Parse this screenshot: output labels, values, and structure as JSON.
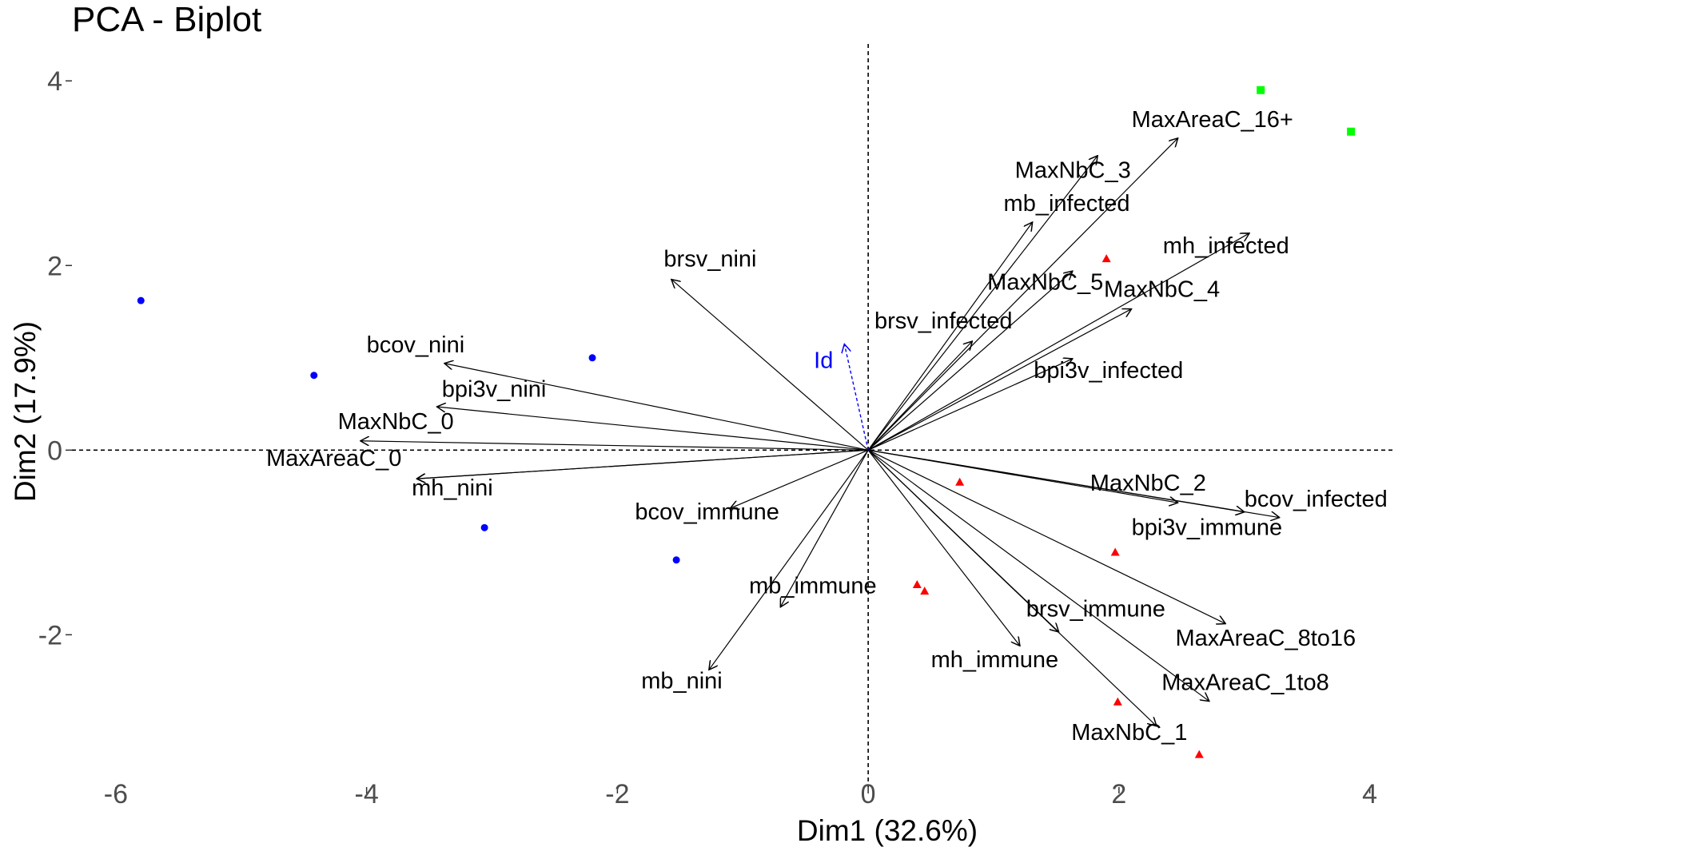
{
  "chart_data": {
    "type": "scatter",
    "title": "PCA - Biplot",
    "xlabel": "Dim1 (32.6%)",
    "ylabel": "Dim2 (17.9%)",
    "xlim": [
      -6.35,
      4.2
    ],
    "ylim": [
      -3.65,
      4.4
    ],
    "xticks": [
      -6,
      -4,
      -2,
      0,
      2,
      4
    ],
    "yticks": [
      -2,
      0,
      2,
      4
    ],
    "grid": false,
    "reference_lines": {
      "x": 0,
      "y": 0,
      "style": "dashed"
    },
    "groups": [
      {
        "shape": "circle",
        "color": "#0000ff",
        "points": [
          [
            -5.8,
            1.62
          ],
          [
            -4.42,
            0.81
          ],
          [
            -3.06,
            -0.84
          ],
          [
            -2.2,
            1.0
          ],
          [
            -1.53,
            -1.19
          ]
        ]
      },
      {
        "shape": "triangle",
        "color": "#ff0000",
        "points": [
          [
            1.9,
            2.07
          ],
          [
            0.73,
            -0.35
          ],
          [
            1.97,
            -1.11
          ],
          [
            0.39,
            -1.46
          ],
          [
            0.45,
            -1.53
          ],
          [
            1.99,
            -2.73
          ],
          [
            2.64,
            -3.3
          ]
        ]
      },
      {
        "shape": "square",
        "color": "#00ff00",
        "points": [
          [
            3.13,
            3.9
          ],
          [
            3.85,
            3.45
          ]
        ]
      }
    ],
    "variables": [
      {
        "name": "MaxAreaC_16+",
        "x": 2.47,
        "y": 3.38
      },
      {
        "name": "MaxNbC_3",
        "x": 1.83,
        "y": 3.19
      },
      {
        "name": "mb_infected",
        "x": 1.31,
        "y": 2.47
      },
      {
        "name": "mh_infected",
        "x": 3.04,
        "y": 2.35
      },
      {
        "name": "MaxNbC_5",
        "x": 1.63,
        "y": 1.94
      },
      {
        "name": "MaxNbC_4",
        "x": 2.1,
        "y": 1.53
      },
      {
        "name": "brsv_infected",
        "x": 0.83,
        "y": 1.18
      },
      {
        "name": "bpi3v_infected",
        "x": 1.63,
        "y": 0.99
      },
      {
        "name": "brsv_nini",
        "x": -1.57,
        "y": 1.85
      },
      {
        "name": "bcov_nini",
        "x": -3.38,
        "y": 0.94
      },
      {
        "name": "bpi3v_nini",
        "x": -3.44,
        "y": 0.47
      },
      {
        "name": "MaxNbC_0",
        "x": -4.05,
        "y": 0.1
      },
      {
        "name": "MaxAreaC_0",
        "x": -3.6,
        "y": -0.31
      },
      {
        "name": "mh_nini",
        "x": -3.6,
        "y": -0.31
      },
      {
        "name": "bcov_immune",
        "x": -1.1,
        "y": -0.63
      },
      {
        "name": "mb_immune",
        "x": -0.7,
        "y": -1.7
      },
      {
        "name": "mb_nini",
        "x": -1.27,
        "y": -2.38
      },
      {
        "name": "MaxNbC_2",
        "x": 2.47,
        "y": -0.57
      },
      {
        "name": "bcov_infected",
        "x": 3.28,
        "y": -0.73
      },
      {
        "name": "bpi3v_immune",
        "x": 3.0,
        "y": -0.67
      },
      {
        "name": "MaxAreaC_8to16",
        "x": 2.85,
        "y": -1.88
      },
      {
        "name": "MaxAreaC_1to8",
        "x": 2.72,
        "y": -2.72
      },
      {
        "name": "brsv_immune",
        "x": 1.52,
        "y": -1.97
      },
      {
        "name": "mh_immune",
        "x": 1.21,
        "y": -2.12
      },
      {
        "name": "MaxNbC_1",
        "x": 2.3,
        "y": -2.99
      }
    ],
    "supplementary_variables": [
      {
        "name": "Id",
        "x": -0.19,
        "y": 1.15,
        "color": "#0000ff",
        "style": "dashed"
      }
    ],
    "labels": [
      {
        "text": "MaxAreaC_16+",
        "x": 2.1,
        "y": 3.5
      },
      {
        "text": "MaxNbC_3",
        "x": 1.17,
        "y": 2.95
      },
      {
        "text": "mb_infected",
        "x": 1.08,
        "y": 2.59
      },
      {
        "text": "mh_infected",
        "x": 2.35,
        "y": 2.13
      },
      {
        "text": "MaxNbC_5",
        "x": 0.95,
        "y": 1.74
      },
      {
        "text": "MaxNbC_4",
        "x": 1.88,
        "y": 1.66
      },
      {
        "text": "brsv_infected",
        "x": 0.05,
        "y": 1.32
      },
      {
        "text": "bpi3v_infected",
        "x": 1.32,
        "y": 0.78
      },
      {
        "text": "brsv_nini",
        "x": -1.63,
        "y": 1.99
      },
      {
        "text": "bcov_nini",
        "x": -4.0,
        "y": 1.06
      },
      {
        "text": "bpi3v_nini",
        "x": -3.4,
        "y": 0.58
      },
      {
        "text": "MaxNbC_0",
        "x": -4.23,
        "y": 0.23
      },
      {
        "text": "MaxAreaC_0",
        "x": -4.8,
        "y": -0.17
      },
      {
        "text": "mh_nini",
        "x": -3.64,
        "y": -0.49
      },
      {
        "text": "bcov_immune",
        "x": -1.86,
        "y": -0.75
      },
      {
        "text": "mb_immune",
        "x": -0.95,
        "y": -1.55
      },
      {
        "text": "mb_nini",
        "x": -1.81,
        "y": -2.58
      },
      {
        "text": "MaxNbC_2",
        "x": 1.77,
        "y": -0.44
      },
      {
        "text": "bcov_infected",
        "x": 3.0,
        "y": -0.61
      },
      {
        "text": "bpi3v_immune",
        "x": 2.1,
        "y": -0.92
      },
      {
        "text": "MaxAreaC_8to16",
        "x": 2.45,
        "y": -2.12
      },
      {
        "text": "MaxAreaC_1to8",
        "x": 2.34,
        "y": -2.6
      },
      {
        "text": "brsv_immune",
        "x": 1.26,
        "y": -1.8
      },
      {
        "text": "mh_immune",
        "x": 0.5,
        "y": -2.35
      },
      {
        "text": "MaxNbC_1",
        "x": 1.62,
        "y": -3.14
      }
    ]
  }
}
